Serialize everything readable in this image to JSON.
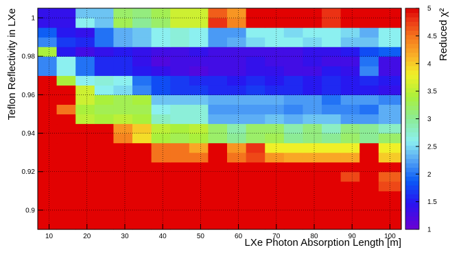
{
  "chart_data": {
    "type": "heatmap",
    "title": "",
    "xlabel": "LXe Photon Absorption Length [m]",
    "ylabel": "Teflon Reflectivity in LXe",
    "zlabel": "Reduced χ²",
    "xlim": [
      7,
      103
    ],
    "ylim": [
      0.89,
      1.005
    ],
    "zlim": [
      1,
      5
    ],
    "x_ticks": [
      "10",
      "20",
      "30",
      "40",
      "50",
      "60",
      "70",
      "80",
      "90",
      "100"
    ],
    "y_ticks": [
      "0.9",
      "0.92",
      "0.94",
      "0.96",
      "0.98",
      "1"
    ],
    "z_ticks": [
      "1",
      "1.5",
      "2",
      "2.5",
      "3",
      "3.5",
      "4",
      "4.5",
      "5"
    ],
    "grid": true,
    "x_bin_edges": [
      7,
      12,
      17,
      22,
      27,
      32,
      37,
      42,
      47,
      52,
      57,
      62,
      67,
      72,
      77,
      82,
      87,
      92,
      97,
      103
    ],
    "y_bin_edges": [
      0.89,
      0.895,
      0.9,
      0.905,
      0.91,
      0.915,
      0.92,
      0.925,
      0.93,
      0.935,
      0.94,
      0.945,
      0.95,
      0.955,
      0.96,
      0.965,
      0.97,
      0.975,
      0.98,
      0.985,
      0.99,
      0.995,
      1.0,
      1.005
    ],
    "z": [
      [
        5,
        5,
        5,
        5,
        5,
        5,
        5,
        5,
        5,
        5,
        5,
        5,
        5,
        5,
        5,
        5,
        5,
        5,
        5
      ],
      [
        5,
        5,
        5,
        5,
        5,
        5,
        5,
        5,
        5,
        5,
        5,
        5,
        5,
        5,
        5,
        5,
        5,
        5,
        5
      ],
      [
        5,
        5,
        5,
        5,
        5,
        5,
        5,
        5,
        5,
        5,
        5,
        5,
        5,
        5,
        5,
        5,
        5,
        5,
        5
      ],
      [
        5,
        5,
        5,
        5,
        5,
        5,
        5,
        5,
        5,
        5,
        5,
        5,
        5,
        5,
        5,
        5,
        5,
        5,
        5
      ],
      [
        5,
        5,
        5,
        5,
        5,
        5,
        5,
        5,
        5,
        5,
        5,
        5,
        5,
        5,
        5,
        5,
        5,
        5,
        4.7
      ],
      [
        5,
        5,
        5,
        5,
        5,
        5,
        5,
        5,
        5,
        5,
        5,
        5,
        5,
        5,
        5,
        5,
        4.7,
        5,
        4.6
      ],
      [
        5,
        5,
        5,
        5,
        5,
        5,
        5,
        5,
        5,
        5,
        5,
        5,
        5,
        5,
        5,
        5,
        5,
        5,
        5
      ],
      [
        5,
        5,
        5,
        5,
        5,
        5,
        4.5,
        4.5,
        4.5,
        5,
        4.5,
        4.7,
        4.3,
        4.2,
        4.2,
        4.2,
        4.2,
        5,
        4.0
      ],
      [
        5,
        5,
        5,
        5,
        5,
        5,
        4.5,
        4.5,
        4.2,
        5,
        4.3,
        4.8,
        3.8,
        3.8,
        3.8,
        3.8,
        3.8,
        5,
        3.8
      ],
      [
        5,
        5,
        5,
        5,
        4.4,
        3.9,
        3.4,
        3.3,
        3.4,
        3.2,
        3.0,
        3.2,
        3.3,
        3.0,
        3.1,
        3.0,
        3.2,
        3.0,
        3.2
      ],
      [
        5,
        5,
        5,
        5,
        4.3,
        4.0,
        3.5,
        3.4,
        3.5,
        3.2,
        2.9,
        3.2,
        3.2,
        2.9,
        3.1,
        2.8,
        3.1,
        3.0,
        2.8
      ],
      [
        5,
        5,
        3.5,
        3.4,
        3.5,
        3.4,
        2.8,
        2.7,
        2.7,
        2.3,
        2.3,
        2.3,
        2.4,
        2.3,
        2.4,
        2.4,
        2.2,
        2.2,
        2.3
      ],
      [
        5,
        4.5,
        3.4,
        3.3,
        3.3,
        3.3,
        2.6,
        2.7,
        2.7,
        2.2,
        2.2,
        2.2,
        2.2,
        2.1,
        2.2,
        2.1,
        2.1,
        2.0,
        2.3
      ],
      [
        5,
        5,
        3.6,
        3.4,
        3.3,
        3.4,
        2.4,
        2.4,
        2.4,
        2.3,
        2.3,
        2.3,
        2.3,
        2.2,
        2.2,
        2.0,
        2.2,
        2.2,
        2.1
      ],
      [
        5,
        5,
        3.6,
        2.6,
        2.5,
        2.1,
        1.8,
        1.7,
        1.7,
        1.6,
        1.6,
        1.7,
        1.6,
        1.6,
        1.5,
        1.6,
        1.5,
        1.5,
        1.4
      ],
      [
        5,
        3.4,
        2.6,
        2.7,
        2.6,
        2.0,
        1.8,
        1.7,
        1.6,
        1.6,
        1.5,
        1.6,
        1.5,
        1.6,
        1.5,
        1.6,
        1.5,
        1.6,
        1.5
      ],
      [
        2.1,
        2.6,
        2.0,
        1.6,
        1.6,
        1.5,
        1.4,
        1.3,
        1.2,
        1.3,
        1.3,
        1.4,
        1.4,
        1.3,
        1.3,
        1.5,
        1.4,
        2.1,
        1.3
      ],
      [
        2.1,
        2.6,
        2.0,
        1.6,
        1.6,
        1.4,
        1.2,
        1.3,
        1.3,
        1.3,
        1.3,
        1.4,
        1.3,
        1.3,
        1.4,
        1.3,
        1.3,
        2.0,
        1.3
      ],
      [
        3.4,
        1.5,
        1.3,
        1.4,
        1.5,
        1.4,
        1.3,
        1.3,
        1.4,
        1.3,
        1.3,
        1.3,
        1.3,
        1.3,
        1.4,
        1.4,
        1.5,
        1.8,
        1.9
      ],
      [
        2.1,
        1.7,
        1.6,
        2.0,
        2.3,
        2.4,
        2.6,
        2.7,
        2.6,
        2.2,
        2.3,
        2.5,
        2.6,
        2.6,
        2.5,
        2.6,
        2.4,
        2.4,
        2.6
      ],
      [
        1.9,
        1.5,
        1.4,
        2.0,
        2.3,
        2.4,
        2.6,
        2.7,
        2.6,
        2.2,
        2.2,
        2.6,
        2.6,
        2.5,
        2.6,
        2.6,
        2.5,
        2.3,
        2.6
      ],
      [
        1.4,
        1.4,
        2.6,
        2.4,
        3.3,
        3.0,
        3.2,
        3.6,
        3.6,
        4.8,
        4.4,
        5,
        5,
        5,
        5,
        4.8,
        5,
        5,
        5
      ],
      [
        1.4,
        1.4,
        2.4,
        2.4,
        3.2,
        3.1,
        3.3,
        3.6,
        3.6,
        4.6,
        4.3,
        5,
        5,
        5,
        5,
        4.8,
        5,
        5,
        5
      ]
    ]
  }
}
